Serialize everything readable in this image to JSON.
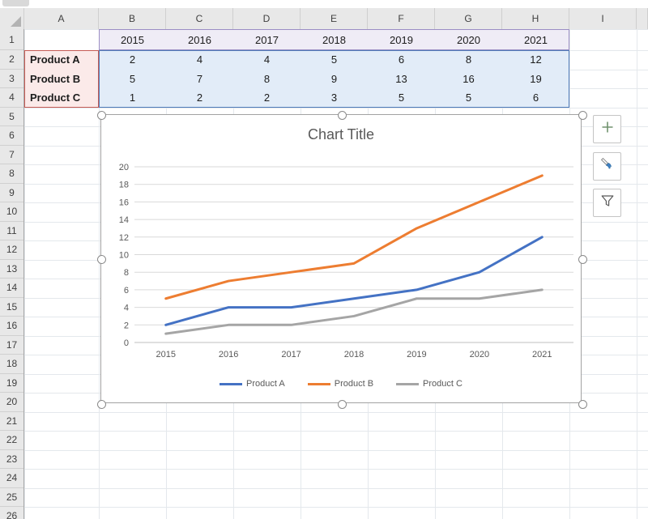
{
  "sheet": {
    "column_headers": [
      "A",
      "B",
      "C",
      "D",
      "E",
      "F",
      "G",
      "H",
      "I"
    ],
    "row_numbers": [
      "1",
      "2",
      "3",
      "4",
      "5",
      "6",
      "7",
      "8",
      "9",
      "10",
      "11",
      "12",
      "13",
      "14",
      "15",
      "16",
      "17",
      "18",
      "19",
      "20",
      "21",
      "22",
      "23",
      "24",
      "25",
      "26"
    ]
  },
  "table": {
    "year_header": [
      "2015",
      "2016",
      "2017",
      "2018",
      "2019",
      "2020",
      "2021"
    ],
    "rows": [
      {
        "label": "Product A",
        "values": [
          "2",
          "4",
          "4",
          "5",
          "6",
          "8",
          "12"
        ]
      },
      {
        "label": "Product B",
        "values": [
          "5",
          "7",
          "8",
          "9",
          "13",
          "16",
          "19"
        ]
      },
      {
        "label": "Product C",
        "values": [
          "1",
          "2",
          "2",
          "3",
          "5",
          "5",
          "6"
        ]
      }
    ],
    "highlight_colors": {
      "series_names_fill": "#fbeae9",
      "series_names_border": "#c55b55",
      "categories_fill": "#efecf6",
      "categories_border": "#9b8ec4",
      "values_fill": "#e2ecf8",
      "values_border": "#4f7ab8"
    }
  },
  "chart_data": {
    "type": "line",
    "title": "Chart Title",
    "categories": [
      "2015",
      "2016",
      "2017",
      "2018",
      "2019",
      "2020",
      "2021"
    ],
    "series": [
      {
        "name": "Product A",
        "color": "#4472C4",
        "values": [
          2,
          4,
          4,
          5,
          6,
          8,
          12
        ]
      },
      {
        "name": "Product B",
        "color": "#ED7D31",
        "values": [
          5,
          7,
          8,
          9,
          13,
          16,
          19
        ]
      },
      {
        "name": "Product C",
        "color": "#A5A5A5",
        "values": [
          1,
          2,
          2,
          3,
          5,
          5,
          6
        ]
      }
    ],
    "ylim": [
      0,
      20
    ],
    "ytick_step": 2,
    "grid": true,
    "legend_position": "bottom",
    "title_color": "#595959",
    "axis_text_color": "#595959",
    "gridline_color": "#d9d9d9"
  },
  "chart_tools": {
    "buttons": [
      {
        "name": "chart-elements-button",
        "icon": "plus-icon"
      },
      {
        "name": "chart-styles-button",
        "icon": "paintbrush-icon"
      },
      {
        "name": "chart-filters-button",
        "icon": "funnel-icon"
      }
    ]
  }
}
